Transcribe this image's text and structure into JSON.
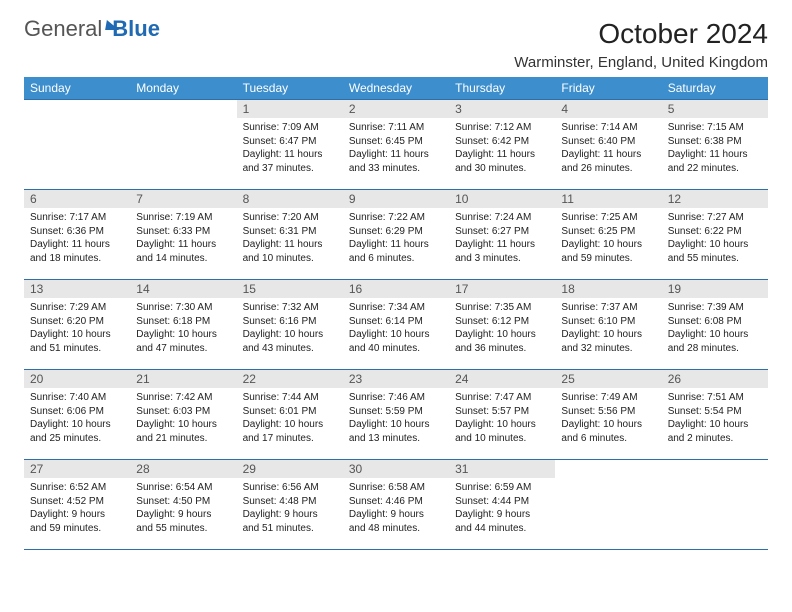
{
  "logo": {
    "word1": "General",
    "word2": "Blue"
  },
  "title": "October 2024",
  "location": "Warminster, England, United Kingdom",
  "colors": {
    "header_bg": "#3c8ecd",
    "header_text": "#ffffff",
    "daynum_bg": "#e7e7e7",
    "rule": "#2f6fa8",
    "logo_gray": "#555555",
    "logo_blue": "#2069b3"
  },
  "daynames": [
    "Sunday",
    "Monday",
    "Tuesday",
    "Wednesday",
    "Thursday",
    "Friday",
    "Saturday"
  ],
  "weeks": [
    [
      null,
      null,
      {
        "n": "1",
        "sr": "7:09 AM",
        "ss": "6:47 PM",
        "dl": "11 hours and 37 minutes."
      },
      {
        "n": "2",
        "sr": "7:11 AM",
        "ss": "6:45 PM",
        "dl": "11 hours and 33 minutes."
      },
      {
        "n": "3",
        "sr": "7:12 AM",
        "ss": "6:42 PM",
        "dl": "11 hours and 30 minutes."
      },
      {
        "n": "4",
        "sr": "7:14 AM",
        "ss": "6:40 PM",
        "dl": "11 hours and 26 minutes."
      },
      {
        "n": "5",
        "sr": "7:15 AM",
        "ss": "6:38 PM",
        "dl": "11 hours and 22 minutes."
      }
    ],
    [
      {
        "n": "6",
        "sr": "7:17 AM",
        "ss": "6:36 PM",
        "dl": "11 hours and 18 minutes."
      },
      {
        "n": "7",
        "sr": "7:19 AM",
        "ss": "6:33 PM",
        "dl": "11 hours and 14 minutes."
      },
      {
        "n": "8",
        "sr": "7:20 AM",
        "ss": "6:31 PM",
        "dl": "11 hours and 10 minutes."
      },
      {
        "n": "9",
        "sr": "7:22 AM",
        "ss": "6:29 PM",
        "dl": "11 hours and 6 minutes."
      },
      {
        "n": "10",
        "sr": "7:24 AM",
        "ss": "6:27 PM",
        "dl": "11 hours and 3 minutes."
      },
      {
        "n": "11",
        "sr": "7:25 AM",
        "ss": "6:25 PM",
        "dl": "10 hours and 59 minutes."
      },
      {
        "n": "12",
        "sr": "7:27 AM",
        "ss": "6:22 PM",
        "dl": "10 hours and 55 minutes."
      }
    ],
    [
      {
        "n": "13",
        "sr": "7:29 AM",
        "ss": "6:20 PM",
        "dl": "10 hours and 51 minutes."
      },
      {
        "n": "14",
        "sr": "7:30 AM",
        "ss": "6:18 PM",
        "dl": "10 hours and 47 minutes."
      },
      {
        "n": "15",
        "sr": "7:32 AM",
        "ss": "6:16 PM",
        "dl": "10 hours and 43 minutes."
      },
      {
        "n": "16",
        "sr": "7:34 AM",
        "ss": "6:14 PM",
        "dl": "10 hours and 40 minutes."
      },
      {
        "n": "17",
        "sr": "7:35 AM",
        "ss": "6:12 PM",
        "dl": "10 hours and 36 minutes."
      },
      {
        "n": "18",
        "sr": "7:37 AM",
        "ss": "6:10 PM",
        "dl": "10 hours and 32 minutes."
      },
      {
        "n": "19",
        "sr": "7:39 AM",
        "ss": "6:08 PM",
        "dl": "10 hours and 28 minutes."
      }
    ],
    [
      {
        "n": "20",
        "sr": "7:40 AM",
        "ss": "6:06 PM",
        "dl": "10 hours and 25 minutes."
      },
      {
        "n": "21",
        "sr": "7:42 AM",
        "ss": "6:03 PM",
        "dl": "10 hours and 21 minutes."
      },
      {
        "n": "22",
        "sr": "7:44 AM",
        "ss": "6:01 PM",
        "dl": "10 hours and 17 minutes."
      },
      {
        "n": "23",
        "sr": "7:46 AM",
        "ss": "5:59 PM",
        "dl": "10 hours and 13 minutes."
      },
      {
        "n": "24",
        "sr": "7:47 AM",
        "ss": "5:57 PM",
        "dl": "10 hours and 10 minutes."
      },
      {
        "n": "25",
        "sr": "7:49 AM",
        "ss": "5:56 PM",
        "dl": "10 hours and 6 minutes."
      },
      {
        "n": "26",
        "sr": "7:51 AM",
        "ss": "5:54 PM",
        "dl": "10 hours and 2 minutes."
      }
    ],
    [
      {
        "n": "27",
        "sr": "6:52 AM",
        "ss": "4:52 PM",
        "dl": "9 hours and 59 minutes."
      },
      {
        "n": "28",
        "sr": "6:54 AM",
        "ss": "4:50 PM",
        "dl": "9 hours and 55 minutes."
      },
      {
        "n": "29",
        "sr": "6:56 AM",
        "ss": "4:48 PM",
        "dl": "9 hours and 51 minutes."
      },
      {
        "n": "30",
        "sr": "6:58 AM",
        "ss": "4:46 PM",
        "dl": "9 hours and 48 minutes."
      },
      {
        "n": "31",
        "sr": "6:59 AM",
        "ss": "4:44 PM",
        "dl": "9 hours and 44 minutes."
      },
      null,
      null
    ]
  ],
  "labels": {
    "sunrise": "Sunrise:",
    "sunset": "Sunset:",
    "daylight": "Daylight:"
  }
}
